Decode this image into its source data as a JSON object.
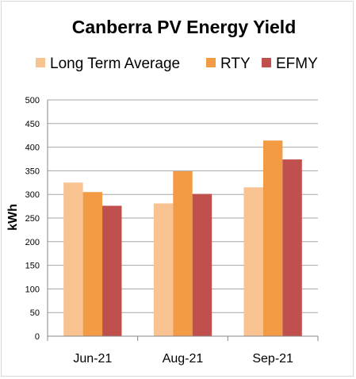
{
  "chart_data": {
    "type": "bar",
    "title": "Canberra PV Energy Yield",
    "xlabel": "",
    "ylabel": "kWh",
    "categories": [
      "Jun-21",
      "Aug-21",
      "Sep-21"
    ],
    "ylim": [
      0,
      500
    ],
    "yticks": [
      0,
      50,
      100,
      150,
      200,
      250,
      300,
      350,
      400,
      450,
      500
    ],
    "ytick_labels": [
      "0",
      "50",
      "100",
      "150",
      "200",
      "250",
      "300",
      "350",
      "400",
      "450",
      "500"
    ],
    "grid": true,
    "legend_position": "top",
    "series": [
      {
        "name": "Long Term Average",
        "color": "#F8C291",
        "values": [
          325,
          281,
          315
        ]
      },
      {
        "name": "RTY",
        "color": "#F39A45",
        "values": [
          305,
          349,
          414
        ]
      },
      {
        "name": "EFMY",
        "color": "#C0504D",
        "values": [
          276,
          301,
          374
        ]
      }
    ]
  }
}
